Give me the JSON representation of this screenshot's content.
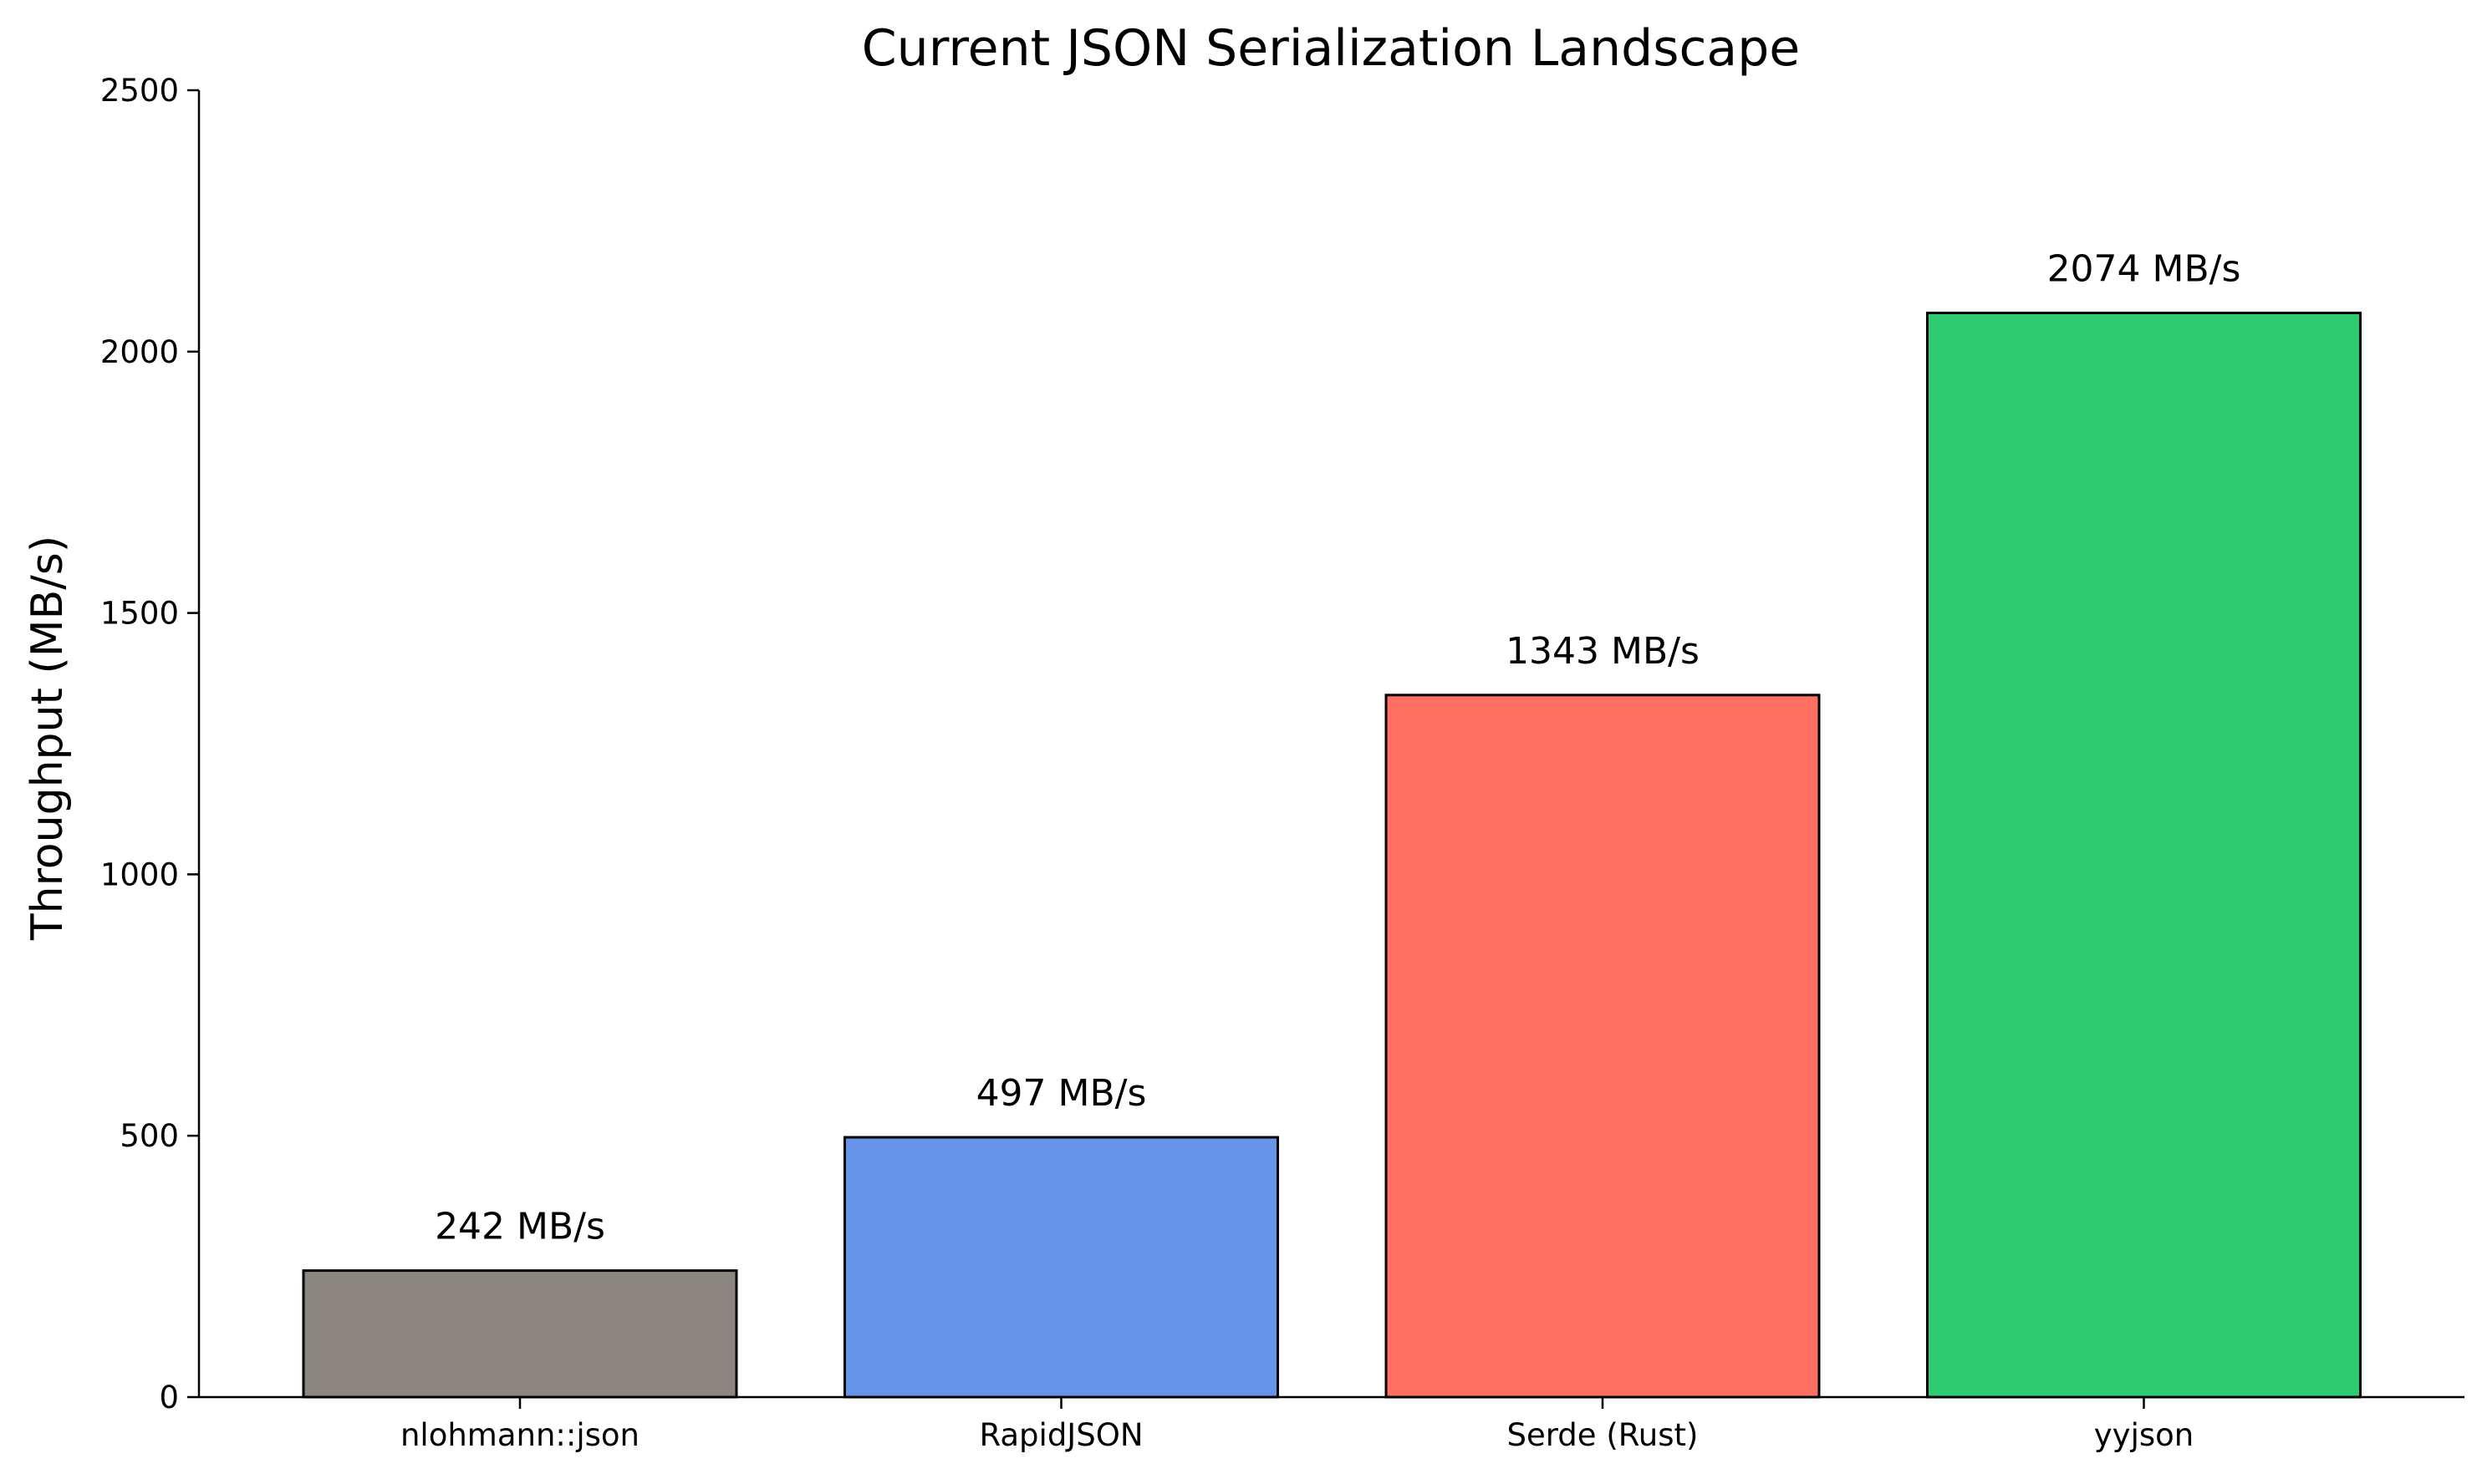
{
  "chart_data": {
    "type": "bar",
    "title": "Current JSON Serialization Landscape",
    "xlabel": "",
    "ylabel": "Throughput (MB/s)",
    "ylim": [
      0,
      2500
    ],
    "yticks": [
      0,
      500,
      1000,
      1500,
      2000,
      2500
    ],
    "categories": [
      "nlohmann::json",
      "RapidJSON",
      "Serde (Rust)",
      "yyjson"
    ],
    "values": [
      242,
      497,
      1343,
      2074
    ],
    "data_labels": [
      "242 MB/s",
      "497 MB/s",
      "1343 MB/s",
      "2074 MB/s"
    ],
    "colors": [
      "#8c8680",
      "#6694ea",
      "#ff7063",
      "#2ecc71"
    ],
    "edge_color": "#000000",
    "grid": false,
    "legend": "none"
  }
}
